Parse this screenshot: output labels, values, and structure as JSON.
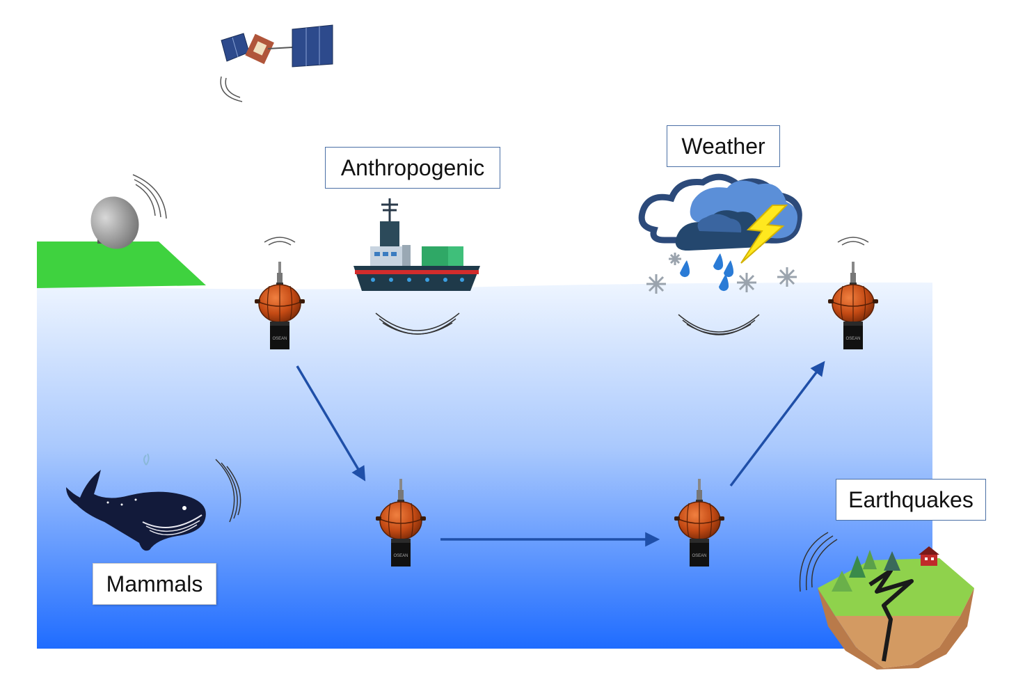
{
  "labels": {
    "anthropogenic": "Anthropogenic",
    "weather": "Weather",
    "earthquakes": "Earthquakes",
    "mammals": "Mammals"
  },
  "colors": {
    "sea_top": "#e9f2ff",
    "sea_bottom": "#1f6fff",
    "land": "#3fd23f",
    "arrow": "#1f4fa8",
    "float_body": "#c8501a",
    "label_border": "#4a6fa5"
  },
  "icons": {
    "satellite": "satellite-icon",
    "dish": "satellite-dish-icon",
    "ship": "cargo-ship-icon",
    "storm": "storm-cloud-icon",
    "whale": "whale-icon",
    "island": "earthquake-island-icon",
    "float": "profiling-float-icon"
  }
}
